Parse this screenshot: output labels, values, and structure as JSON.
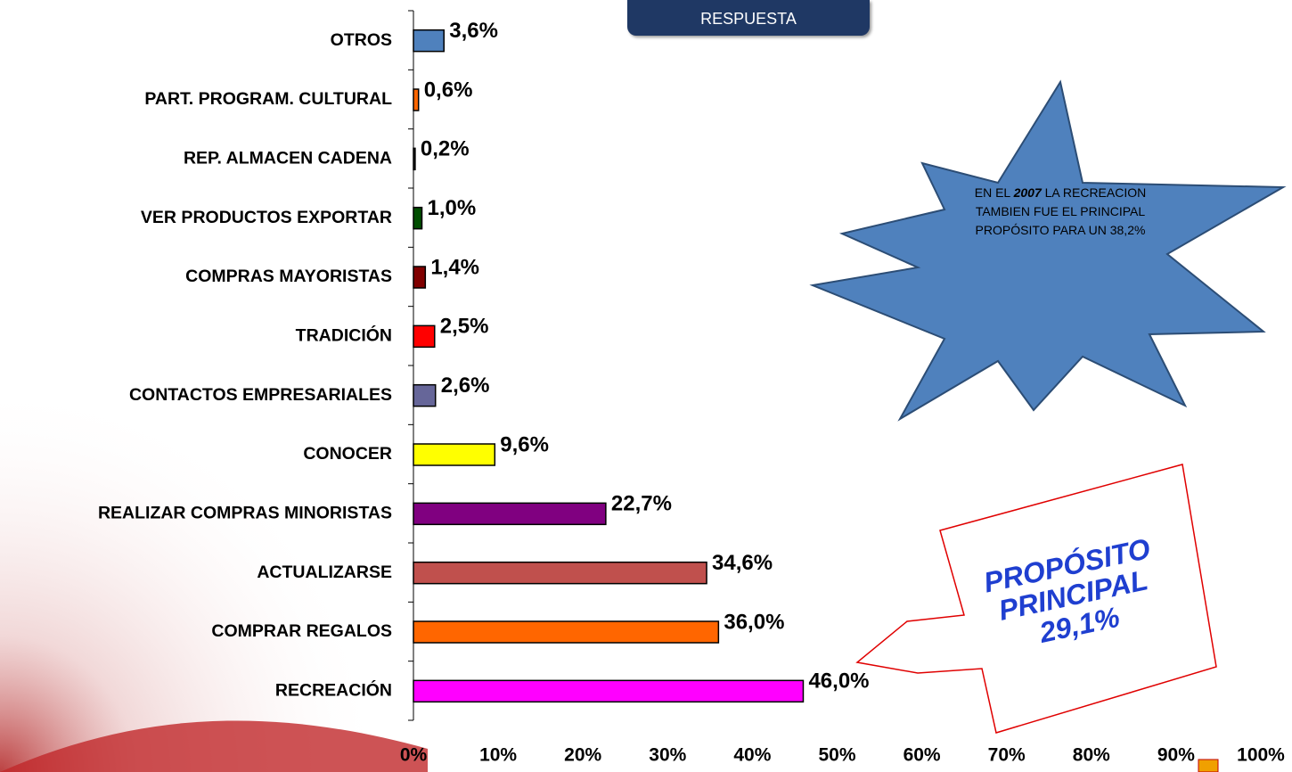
{
  "header": {
    "title": "RESPUESTA"
  },
  "chart_data": {
    "type": "hbar",
    "categories": [
      "OTROS",
      "PART. PROGRAM. CULTURAL",
      "REP. ALMACEN CADENA",
      "VER PRODUCTOS EXPORTAR",
      "COMPRAS MAYORISTAS",
      "TRADICIÓN",
      "CONTACTOS EMPRESARIALES",
      "CONOCER",
      "REALIZAR COMPRAS MINORISTAS",
      "ACTUALIZARSE",
      "COMPRAR REGALOS",
      "RECREACIÓN"
    ],
    "values": [
      3.6,
      0.6,
      0.2,
      1.0,
      1.4,
      2.5,
      2.6,
      9.6,
      22.7,
      34.6,
      36.0,
      46.0
    ],
    "value_labels": [
      "3,6%",
      "0,6%",
      "0,2%",
      "1,0%",
      "1,4%",
      "2,5%",
      "2,6%",
      "9,6%",
      "22,7%",
      "34,6%",
      "36,0%",
      "46,0%"
    ],
    "colors": [
      "#4f81bd",
      "#ff6600",
      "#333333",
      "#004d00",
      "#800000",
      "#ff0000",
      "#666699",
      "#ffff00",
      "#800080",
      "#c0504d",
      "#ff6600",
      "#ff00ff"
    ],
    "xlim": [
      0,
      100
    ],
    "xticks": [
      {
        "value": 0,
        "label": "0%"
      },
      {
        "value": 10,
        "label": "10%"
      },
      {
        "value": 20,
        "label": "20%"
      },
      {
        "value": 30,
        "label": "30%"
      },
      {
        "value": 40,
        "label": "40%"
      },
      {
        "value": 50,
        "label": "50%"
      },
      {
        "value": 60,
        "label": "60%"
      },
      {
        "value": 70,
        "label": "70%"
      },
      {
        "value": 80,
        "label": "80%"
      },
      {
        "value": 90,
        "label": "90%"
      },
      {
        "value": 100,
        "label": "100%"
      }
    ]
  },
  "star_note": {
    "before": "EN EL",
    "emphasis": "2007",
    "after": "LA RECREACION TAMBIEN FUE EL PRINCIPAL PROPÓSITO PARA UN 38,2%"
  },
  "callout": {
    "lines": [
      "PROPÓSITO",
      "PRINCIPAL",
      "29,1%"
    ]
  }
}
